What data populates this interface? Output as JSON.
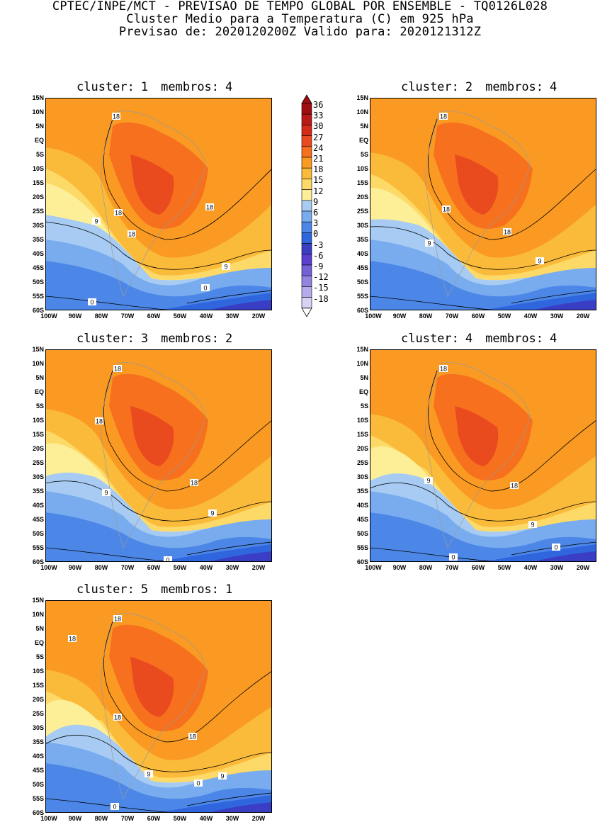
{
  "header": {
    "line1": "CPTEC/INPE/MCT - PREVISAO DE TEMPO GLOBAL POR ENSEMBLE - TQ0126L028",
    "line2": "Cluster Medio para a Temperatura (C) em 925 hPa",
    "line3": "Previsao de: 2020120200Z   Valido para: 2020121312Z"
  },
  "axes": {
    "lat_labels": [
      "15N",
      "10N",
      "5N",
      "EQ",
      "5S",
      "10S",
      "15S",
      "20S",
      "25S",
      "30S",
      "35S",
      "40S",
      "45S",
      "50S",
      "55S",
      "60S"
    ],
    "lon_labels": [
      "100W",
      "90W",
      "80W",
      "70W",
      "60W",
      "50W",
      "40W",
      "30W",
      "20W"
    ]
  },
  "colorbar": {
    "labels": [
      "36",
      "33",
      "30",
      "27",
      "24",
      "21",
      "18",
      "15",
      "12",
      "9",
      "6",
      "3",
      "0",
      "-3",
      "-6",
      "-9",
      "-12",
      "-15",
      "-18"
    ],
    "colors": [
      "#9e0e10",
      "#b81a14",
      "#d42a18",
      "#e94a1e",
      "#f6701e",
      "#fa9a22",
      "#fbbb3a",
      "#fdd968",
      "#fdee98",
      "#a7cbf3",
      "#78acee",
      "#4c87e8",
      "#2f66dd",
      "#3a3ec4",
      "#5a3ed0",
      "#7560d8",
      "#9384e0",
      "#b4acec",
      "#d7d2f6"
    ]
  },
  "clusters": [
    {
      "label": "cluster:",
      "num": "1",
      "members_label": "membros:",
      "members": "4",
      "contours": [
        "18",
        "18",
        "18",
        "18",
        "9",
        "9",
        "0",
        "0"
      ]
    },
    {
      "label": "cluster:",
      "num": "2",
      "members_label": "membros:",
      "members": "4",
      "contours": [
        "18",
        "18",
        "18",
        "9",
        "9"
      ]
    },
    {
      "label": "cluster:",
      "num": "3",
      "members_label": "membros:",
      "members": "2",
      "contours": [
        "18",
        "18",
        "18",
        "9",
        "9",
        "0"
      ]
    },
    {
      "label": "cluster:",
      "num": "4",
      "members_label": "membros:",
      "members": "4",
      "contours": [
        "18",
        "18",
        "9",
        "9",
        "0",
        "0"
      ]
    },
    {
      "label": "cluster:",
      "num": "5",
      "members_label": "membros:",
      "members": "1",
      "contours": [
        "18",
        "18",
        "18",
        "18",
        "9",
        "9",
        "0",
        "0"
      ]
    }
  ]
}
